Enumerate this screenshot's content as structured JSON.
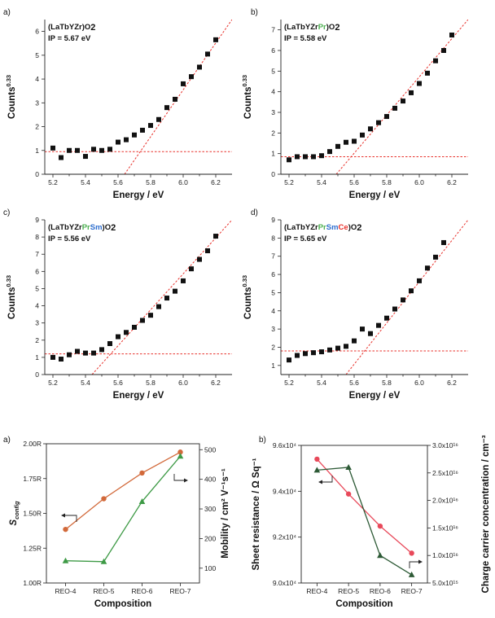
{
  "chart_data": [
    {
      "type": "scatter",
      "panel_label": "a)",
      "sample_label": {
        "prefix": "(LaTbYZr)",
        "parts": [],
        "suffix": "O",
        "subscript": "2"
      },
      "ip_label": "IP = 5.67 eV",
      "xlabel": "Energy / eV",
      "ylabel": "Counts",
      "ylabel_sup": "0.33",
      "xlim": [
        5.15,
        6.3
      ],
      "ylim": [
        0,
        6.5
      ],
      "xticks": [
        5.2,
        5.4,
        5.6,
        5.8,
        6.0,
        6.2
      ],
      "xtick_labels": [
        "5.2",
        "5.4",
        "5.6",
        "5.8",
        "6.0",
        "6.2"
      ],
      "yticks": [
        0,
        1,
        2,
        3,
        4,
        5,
        6
      ],
      "ytick_labels": [
        "0",
        "1",
        "2",
        "3",
        "4",
        "5",
        "6"
      ],
      "points_x": [
        5.2,
        5.25,
        5.3,
        5.35,
        5.4,
        5.45,
        5.5,
        5.55,
        5.6,
        5.65,
        5.7,
        5.75,
        5.8,
        5.85,
        5.9,
        5.95,
        6.0,
        6.05,
        6.1,
        6.15,
        6.2
      ],
      "points_y": [
        1.1,
        0.7,
        1.0,
        1.0,
        0.75,
        1.05,
        1.0,
        1.05,
        1.35,
        1.45,
        1.65,
        1.85,
        2.05,
        2.3,
        2.8,
        3.15,
        3.8,
        4.1,
        4.5,
        5.05,
        5.65
      ],
      "baseline_y": 0.95,
      "fit_line": [
        [
          5.64,
          0.0
        ],
        [
          6.3,
          6.5
        ]
      ],
      "fit_color": "#e8302a"
    },
    {
      "type": "scatter",
      "panel_label": "b)",
      "sample_label": {
        "prefix": "(LaTbYZr",
        "parts": [
          {
            "text": "Pr",
            "color": "#4caf50"
          }
        ],
        "suffix": ")O",
        "subscript": "2"
      },
      "ip_label": "IP = 5.58 eV",
      "xlabel": "Energy / eV",
      "ylabel": "Counts",
      "ylabel_sup": "0.33",
      "xlim": [
        5.15,
        6.3
      ],
      "ylim": [
        0,
        7.5
      ],
      "xticks": [
        5.2,
        5.4,
        5.6,
        5.8,
        6.0,
        6.2
      ],
      "xtick_labels": [
        "5.2",
        "5.4",
        "5.6",
        "5.8",
        "6.0",
        "6.2"
      ],
      "yticks": [
        0,
        1,
        2,
        3,
        4,
        5,
        6,
        7
      ],
      "ytick_labels": [
        "0",
        "1",
        "2",
        "3",
        "4",
        "5",
        "6",
        "7"
      ],
      "points_x": [
        5.2,
        5.25,
        5.3,
        5.35,
        5.4,
        5.45,
        5.5,
        5.55,
        5.6,
        5.65,
        5.7,
        5.75,
        5.8,
        5.85,
        5.9,
        5.95,
        6.0,
        6.05,
        6.1,
        6.15,
        6.2
      ],
      "points_y": [
        0.7,
        0.85,
        0.85,
        0.85,
        0.9,
        1.1,
        1.35,
        1.55,
        1.6,
        1.9,
        2.2,
        2.5,
        2.8,
        3.2,
        3.55,
        3.95,
        4.4,
        4.9,
        5.5,
        6.0,
        6.75
      ],
      "baseline_y": 0.85,
      "fit_line": [
        [
          5.49,
          0.0
        ],
        [
          6.3,
          7.5
        ]
      ],
      "fit_color": "#e8302a"
    },
    {
      "type": "scatter",
      "panel_label": "c)",
      "sample_label": {
        "prefix": "(LaTbYZr",
        "parts": [
          {
            "text": "Pr",
            "color": "#4caf50"
          },
          {
            "text": "Sm",
            "color": "#2f6fd0"
          }
        ],
        "suffix": ")O",
        "subscript": "2"
      },
      "ip_label": "IP = 5.56 eV",
      "xlabel": "Energy / eV",
      "ylabel": "Counts",
      "ylabel_sup": "0.33",
      "xlim": [
        5.15,
        6.3
      ],
      "ylim": [
        0,
        9
      ],
      "xticks": [
        5.2,
        5.4,
        5.6,
        5.8,
        6.0,
        6.2
      ],
      "xtick_labels": [
        "5.2",
        "5.4",
        "5.6",
        "5.8",
        "6.0",
        "6.2"
      ],
      "yticks": [
        0,
        1,
        2,
        3,
        4,
        5,
        6,
        7,
        8,
        9
      ],
      "ytick_labels": [
        "0",
        "1",
        "2",
        "3",
        "4",
        "5",
        "6",
        "7",
        "8",
        "9"
      ],
      "points_x": [
        5.2,
        5.25,
        5.3,
        5.35,
        5.4,
        5.45,
        5.5,
        5.55,
        5.6,
        5.65,
        5.7,
        5.75,
        5.8,
        5.85,
        5.9,
        5.95,
        6.0,
        6.05,
        6.1,
        6.15,
        6.2
      ],
      "points_y": [
        1.0,
        0.9,
        1.15,
        1.35,
        1.25,
        1.25,
        1.45,
        1.8,
        2.2,
        2.45,
        2.75,
        3.15,
        3.45,
        3.95,
        4.45,
        4.85,
        5.45,
        6.15,
        6.7,
        7.2,
        8.05
      ],
      "baseline_y": 1.2,
      "fit_line": [
        [
          5.44,
          0.0
        ],
        [
          6.3,
          9.0
        ]
      ],
      "fit_color": "#e8302a"
    },
    {
      "type": "scatter",
      "panel_label": "d)",
      "sample_label": {
        "prefix": "(LaTbYZr",
        "parts": [
          {
            "text": "Pr",
            "color": "#4caf50"
          },
          {
            "text": "Sm",
            "color": "#2f6fd0"
          },
          {
            "text": "Ce",
            "color": "#e8302a"
          }
        ],
        "suffix": ")O",
        "subscript": "2"
      },
      "ip_label": "IP = 5.65 eV",
      "xlabel": "Energy / eV",
      "ylabel": "Counts",
      "ylabel_sup": "0.33",
      "xlim": [
        5.15,
        6.3
      ],
      "ylim": [
        0.5,
        9
      ],
      "xticks": [
        5.2,
        5.4,
        5.6,
        5.8,
        6.0,
        6.2
      ],
      "xtick_labels": [
        "5.2",
        "5.4",
        "5.6",
        "5.8",
        "6.0",
        "6.2"
      ],
      "yticks": [
        1,
        2,
        3,
        4,
        5,
        6,
        7,
        8,
        9
      ],
      "ytick_labels": [
        "1",
        "2",
        "3",
        "4",
        "5",
        "6",
        "7",
        "8",
        "9"
      ],
      "points_x": [
        5.2,
        5.25,
        5.3,
        5.35,
        5.4,
        5.45,
        5.5,
        5.55,
        5.6,
        5.65,
        5.7,
        5.75,
        5.8,
        5.85,
        5.9,
        5.95,
        6.0,
        6.05,
        6.1,
        6.15
      ],
      "points_y": [
        1.3,
        1.55,
        1.65,
        1.7,
        1.75,
        1.85,
        1.95,
        2.05,
        2.35,
        3.0,
        2.75,
        3.2,
        3.6,
        4.1,
        4.6,
        5.1,
        5.65,
        6.35,
        6.95,
        7.75
      ],
      "baseline_y": 1.8,
      "fit_line": [
        [
          5.55,
          0.5
        ],
        [
          6.3,
          9.0
        ]
      ],
      "fit_color": "#e8302a"
    },
    {
      "type": "line",
      "panel_label": "a)",
      "categories": [
        "REO-4",
        "REO-5",
        "REO-6",
        "REO-7"
      ],
      "xlabel": "Composition",
      "ylabel_left_main": "S",
      "ylabel_left_sub": "config",
      "ylabel_right": "Mobility / cm² V⁻¹s⁻¹",
      "left_ylim": [
        1.0,
        2.0
      ],
      "left_ticks": [
        1.0,
        1.25,
        1.5,
        1.75,
        2.0
      ],
      "left_tick_labels": [
        "1.00R",
        "1.25R",
        "1.50R",
        "1.75R",
        "2.00R"
      ],
      "right_ylim": [
        50,
        520
      ],
      "right_ticks": [
        100,
        200,
        300,
        400,
        500
      ],
      "right_tick_labels": [
        "100",
        "200",
        "300",
        "400",
        "500"
      ],
      "series": [
        {
          "axis": "left",
          "color": "#d2693a",
          "marker": "circle",
          "values": [
            1.385,
            1.605,
            1.79,
            1.94
          ]
        },
        {
          "axis": "right",
          "color": "#3e9a46",
          "marker": "triangle",
          "values": [
            125,
            122,
            325,
            478
          ]
        }
      ],
      "ylabel_left_color": "#d2693a",
      "ylabel_right_color": "#3e9a46"
    },
    {
      "type": "line",
      "panel_label": "b)",
      "categories": [
        "REO-4",
        "REO-5",
        "REO-6",
        "REO-7"
      ],
      "xlabel": "Composition",
      "ylabel_left": "Sheet resistance / Ω Sq⁻¹",
      "ylabel_right": "Charge carrier concentration / cm⁻³",
      "left_ylim": [
        90000,
        96000
      ],
      "left_ticks": [
        90000,
        92000,
        94000,
        96000
      ],
      "left_tick_labels": [
        "9.0x10⁴",
        "9.2x10⁴",
        "9.4x10⁴",
        "9.6x10⁴"
      ],
      "right_ylim": [
        5000000000000000.0,
        3e+16
      ],
      "right_ticks": [
        5000000000000000.0,
        1e+16,
        1.5e+16,
        2e+16,
        2.5e+16,
        3e+16
      ],
      "right_tick_labels": [
        "5.0x10¹⁵",
        "1.0x10¹⁶",
        "1.5x10¹⁶",
        "2.0x10¹⁶",
        "2.5x10¹⁶",
        "3.0x10¹⁶"
      ],
      "series": [
        {
          "axis": "left",
          "color": "#e8495a",
          "marker": "circle",
          "values": [
            95400,
            93880,
            92480,
            91300
          ]
        },
        {
          "axis": "right",
          "color": "#2d5a36",
          "marker": "triangle",
          "values": [
            2.55e+16,
            2.6e+16,
            1e+16,
            6500000000000000.0
          ]
        }
      ],
      "ylabel_left_color": "#e8495a",
      "ylabel_right_color": "#2d5a36"
    }
  ]
}
